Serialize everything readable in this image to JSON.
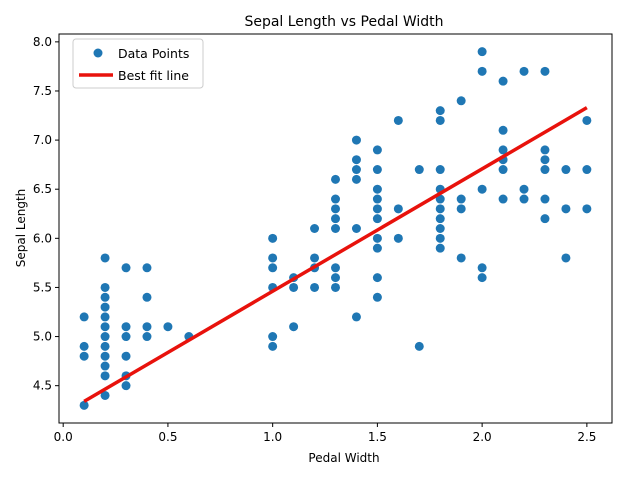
{
  "chart_data": {
    "type": "scatter",
    "title": "Sepal Length vs Pedal Width",
    "xlabel": "Pedal Width",
    "ylabel": "Sepal Length",
    "xlim": [
      -0.02,
      2.62
    ],
    "ylim": [
      4.12,
      8.08
    ],
    "xticks": [
      0.0,
      0.5,
      1.0,
      1.5,
      2.0,
      2.5
    ],
    "xtick_labels": [
      "0.0",
      "0.5",
      "1.0",
      "1.5",
      "2.0",
      "2.5"
    ],
    "yticks": [
      4.5,
      5.0,
      5.5,
      6.0,
      6.5,
      7.0,
      7.5,
      8.0
    ],
    "ytick_labels": [
      "4.5",
      "5.0",
      "5.5",
      "6.0",
      "6.5",
      "7.0",
      "7.5",
      "8.0"
    ],
    "grid": false,
    "legend_position": "upper-left",
    "series": [
      {
        "name": "Data Points",
        "kind": "scatter",
        "color": "#1f77b4",
        "points": [
          [
            0.1,
            4.3
          ],
          [
            0.1,
            4.8
          ],
          [
            0.1,
            4.9
          ],
          [
            0.1,
            5.2
          ],
          [
            0.2,
            4.4
          ],
          [
            0.2,
            4.6
          ],
          [
            0.2,
            4.7
          ],
          [
            0.2,
            4.8
          ],
          [
            0.2,
            4.9
          ],
          [
            0.2,
            5.0
          ],
          [
            0.2,
            5.1
          ],
          [
            0.2,
            5.2
          ],
          [
            0.2,
            5.3
          ],
          [
            0.2,
            5.4
          ],
          [
            0.2,
            5.5
          ],
          [
            0.2,
            5.8
          ],
          [
            0.3,
            4.5
          ],
          [
            0.3,
            4.6
          ],
          [
            0.3,
            4.8
          ],
          [
            0.3,
            5.0
          ],
          [
            0.3,
            5.1
          ],
          [
            0.3,
            5.7
          ],
          [
            0.4,
            5.0
          ],
          [
            0.4,
            5.1
          ],
          [
            0.4,
            5.4
          ],
          [
            0.4,
            5.7
          ],
          [
            0.5,
            5.1
          ],
          [
            0.6,
            5.0
          ],
          [
            1.0,
            4.9
          ],
          [
            1.0,
            5.0
          ],
          [
            1.0,
            5.5
          ],
          [
            1.0,
            5.7
          ],
          [
            1.0,
            5.8
          ],
          [
            1.0,
            6.0
          ],
          [
            1.1,
            5.1
          ],
          [
            1.1,
            5.5
          ],
          [
            1.1,
            5.6
          ],
          [
            1.2,
            5.5
          ],
          [
            1.2,
            5.7
          ],
          [
            1.2,
            5.8
          ],
          [
            1.2,
            6.1
          ],
          [
            1.3,
            5.5
          ],
          [
            1.3,
            5.6
          ],
          [
            1.3,
            5.7
          ],
          [
            1.3,
            6.1
          ],
          [
            1.3,
            6.2
          ],
          [
            1.3,
            6.3
          ],
          [
            1.3,
            6.4
          ],
          [
            1.3,
            6.6
          ],
          [
            1.4,
            5.2
          ],
          [
            1.4,
            6.1
          ],
          [
            1.4,
            6.6
          ],
          [
            1.4,
            6.7
          ],
          [
            1.4,
            6.8
          ],
          [
            1.4,
            7.0
          ],
          [
            1.5,
            5.4
          ],
          [
            1.5,
            5.6
          ],
          [
            1.5,
            5.9
          ],
          [
            1.5,
            6.0
          ],
          [
            1.5,
            6.2
          ],
          [
            1.5,
            6.3
          ],
          [
            1.5,
            6.4
          ],
          [
            1.5,
            6.5
          ],
          [
            1.5,
            6.7
          ],
          [
            1.5,
            6.9
          ],
          [
            1.6,
            6.0
          ],
          [
            1.6,
            6.3
          ],
          [
            1.6,
            7.2
          ],
          [
            1.7,
            4.9
          ],
          [
            1.7,
            6.7
          ],
          [
            1.8,
            5.9
          ],
          [
            1.8,
            6.0
          ],
          [
            1.8,
            6.1
          ],
          [
            1.8,
            6.2
          ],
          [
            1.8,
            6.3
          ],
          [
            1.8,
            6.4
          ],
          [
            1.8,
            6.5
          ],
          [
            1.8,
            6.7
          ],
          [
            1.8,
            7.2
          ],
          [
            1.8,
            7.3
          ],
          [
            1.9,
            5.8
          ],
          [
            1.9,
            6.3
          ],
          [
            1.9,
            6.4
          ],
          [
            1.9,
            7.4
          ],
          [
            2.0,
            5.6
          ],
          [
            2.0,
            5.7
          ],
          [
            2.0,
            6.5
          ],
          [
            2.0,
            7.7
          ],
          [
            2.0,
            7.9
          ],
          [
            2.1,
            6.4
          ],
          [
            2.1,
            6.7
          ],
          [
            2.1,
            6.8
          ],
          [
            2.1,
            6.9
          ],
          [
            2.1,
            7.1
          ],
          [
            2.1,
            7.6
          ],
          [
            2.2,
            6.4
          ],
          [
            2.2,
            6.5
          ],
          [
            2.2,
            7.7
          ],
          [
            2.3,
            6.2
          ],
          [
            2.3,
            6.4
          ],
          [
            2.3,
            6.7
          ],
          [
            2.3,
            6.8
          ],
          [
            2.3,
            6.9
          ],
          [
            2.3,
            7.7
          ],
          [
            2.4,
            5.8
          ],
          [
            2.4,
            6.3
          ],
          [
            2.4,
            6.7
          ],
          [
            2.5,
            6.3
          ],
          [
            2.5,
            6.7
          ],
          [
            2.5,
            7.2
          ]
        ]
      },
      {
        "name": "Best fit line",
        "kind": "line",
        "color": "#e8120c",
        "x": [
          0.1,
          2.5
        ],
        "y": [
          4.34,
          7.33
        ]
      }
    ]
  }
}
